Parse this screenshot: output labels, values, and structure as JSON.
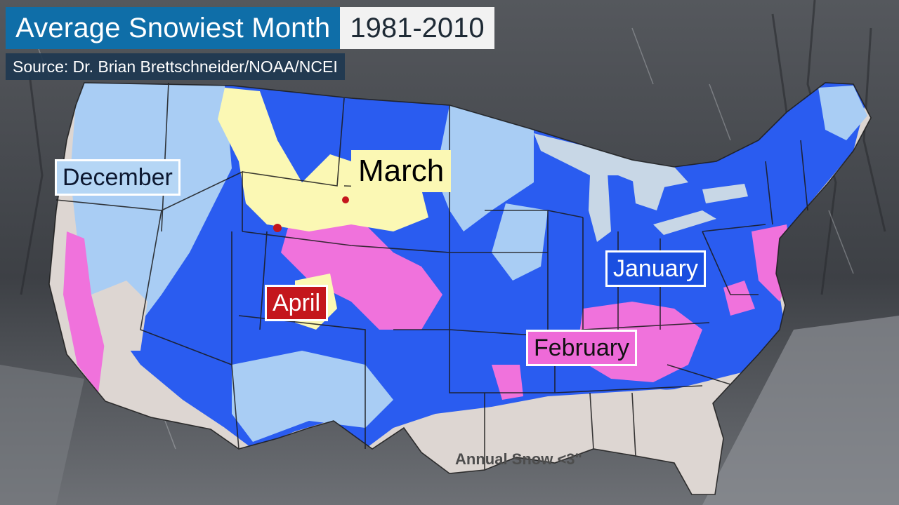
{
  "title": {
    "main": "Average Snowiest Month",
    "years": "1981-2010"
  },
  "source": "Source: Dr. Brian Brettschneider/NOAA/NCEI",
  "labels": {
    "december": "December",
    "march": "March",
    "april": "April",
    "january": "January",
    "february": "February"
  },
  "annual_note": "Annual Snow <3\"",
  "colors": {
    "december": "#a9cdf4",
    "january": "#2a5cf0",
    "february": "#f072dc",
    "march": "#fbf8b4",
    "april": "#c4161c",
    "no_snow": "#ddd6d2",
    "lakes": "#c8d7e6",
    "title_blue": "#0f6ea8",
    "background": "#3a3d42"
  }
}
